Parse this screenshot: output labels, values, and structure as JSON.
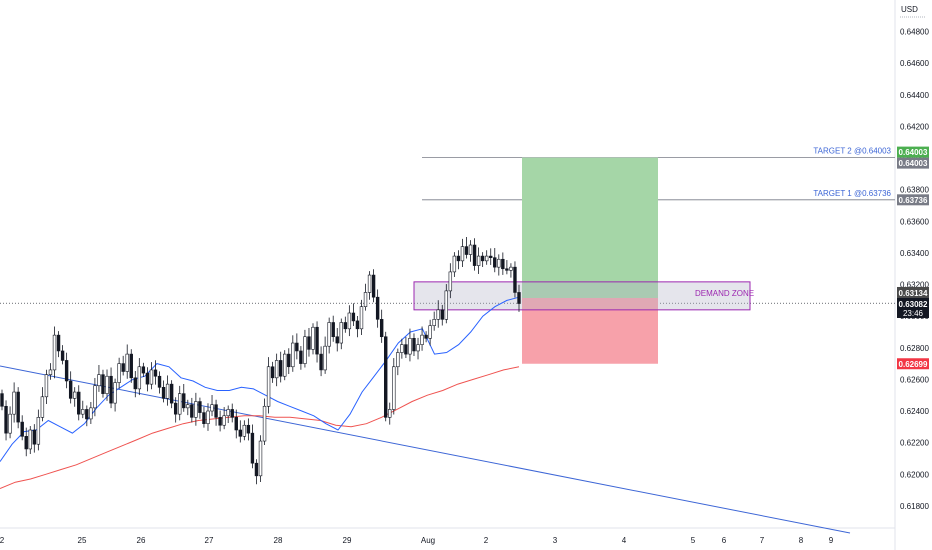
{
  "chart_data": {
    "type": "candlestick",
    "currency_label": "USD",
    "y_range": [
      0.6166,
      0.65
    ],
    "y_ticks": [
      "0.64800",
      "0.64600",
      "0.64400",
      "0.64200",
      "0.64000",
      "0.63800",
      "0.63600",
      "0.63400",
      "0.63200",
      "0.63000",
      "0.62800",
      "0.62600",
      "0.62400",
      "0.62200",
      "0.62000",
      "0.61800"
    ],
    "x_ticks": [
      "2",
      "25",
      "26",
      "27",
      "28",
      "29",
      "Aug",
      "2",
      "3",
      "4",
      "5",
      "6",
      "7",
      "8",
      "9"
    ],
    "price_labels": {
      "target2_green": "0.64003",
      "target2_gray": "0.64003",
      "target1": "0.63736",
      "demand": "0.63134",
      "current": "0.63082",
      "countdown": "23:46",
      "stop": "0.62699"
    },
    "annotations": {
      "target2": "TARGET 2 @0.64003",
      "target1": "TARGET 1 @0.63736",
      "demand_zone": "DEMAND ZONE"
    },
    "levels": {
      "entry": 0.63115,
      "stop": 0.62699,
      "target1": 0.63736,
      "target2": 0.64003,
      "demand_top": 0.63217,
      "demand_bottom": 0.6304,
      "current": 0.63082
    },
    "candles_close": [
      0.6243,
      0.6226,
      0.6238,
      0.6252,
      0.6233,
      0.6224,
      0.6216,
      0.6228,
      0.6219,
      0.6236,
      0.6249,
      0.6263,
      0.6266,
      0.6288,
      0.6278,
      0.6272,
      0.6259,
      0.6248,
      0.6252,
      0.6238,
      0.6241,
      0.6235,
      0.6242,
      0.6256,
      0.6263,
      0.6251,
      0.6262,
      0.6245,
      0.6258,
      0.627,
      0.6265,
      0.6276,
      0.6261,
      0.6254,
      0.6268,
      0.6264,
      0.6257,
      0.6266,
      0.6262,
      0.6255,
      0.6248,
      0.6257,
      0.6245,
      0.6238,
      0.6251,
      0.6242,
      0.6244,
      0.6236,
      0.6246,
      0.6239,
      0.6232,
      0.624,
      0.6244,
      0.6236,
      0.6231,
      0.6237,
      0.6241,
      0.6236,
      0.6228,
      0.6224,
      0.6231,
      0.6226,
      0.6207,
      0.6199,
      0.6221,
      0.6243,
      0.6268,
      0.6261,
      0.6272,
      0.6262,
      0.6276,
      0.6268,
      0.6283,
      0.6278,
      0.627,
      0.6287,
      0.6279,
      0.6293,
      0.6276,
      0.6266,
      0.6281,
      0.6296,
      0.6287,
      0.6283,
      0.6296,
      0.6292,
      0.6302,
      0.6297,
      0.6292,
      0.6306,
      0.6315,
      0.6326,
      0.6312,
      0.6298,
      0.6287,
      0.6236,
      0.6241,
      0.6268,
      0.6277,
      0.6282,
      0.6276,
      0.6286,
      0.6278,
      0.6282,
      0.6288,
      0.6286,
      0.6294,
      0.6298,
      0.6304,
      0.6298,
      0.6316,
      0.6328,
      0.6338,
      0.6335,
      0.6344,
      0.6339,
      0.6345,
      0.6332,
      0.6338,
      0.6335,
      0.6338,
      0.6337,
      0.6331,
      0.6336,
      0.633,
      0.6329,
      0.6331,
      0.6315,
      0.6308
    ],
    "ema_fast": [
      0.6208,
      0.6219,
      0.6227,
      0.6228,
      0.6234,
      0.623,
      0.6226,
      0.6232,
      0.6242,
      0.625,
      0.6255,
      0.626,
      0.6262,
      0.627,
      0.6268,
      0.6261,
      0.6259,
      0.6255,
      0.6253,
      0.6253,
      0.6255,
      0.6254,
      0.625,
      0.6246,
      0.6243,
      0.624,
      0.6237,
      0.6232,
      0.6228,
      0.6238,
      0.6252,
      0.6262,
      0.6272,
      0.6283,
      0.629,
      0.6292,
      0.6276,
      0.6277,
      0.6282,
      0.629,
      0.63,
      0.6306,
      0.631,
      0.6312
    ],
    "ema_slow": [
      0.6191,
      0.6195,
      0.6197,
      0.62,
      0.6203,
      0.6206,
      0.621,
      0.6214,
      0.6218,
      0.6222,
      0.6226,
      0.6229,
      0.6232,
      0.6234,
      0.6235,
      0.6236,
      0.6237,
      0.6237,
      0.6236,
      0.6236,
      0.6235,
      0.6234,
      0.6231,
      0.623,
      0.6232,
      0.6236,
      0.6241,
      0.6246,
      0.625,
      0.6253,
      0.6257,
      0.626,
      0.6263,
      0.6266,
      0.6268
    ]
  }
}
